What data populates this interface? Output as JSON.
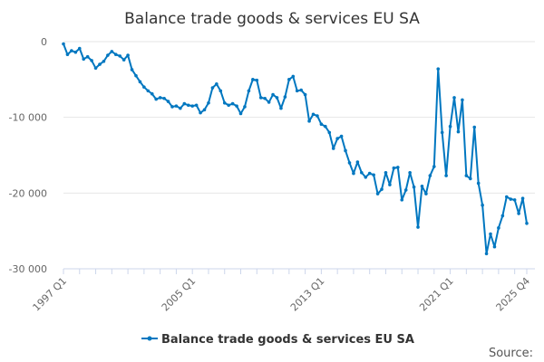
{
  "chart_data": {
    "type": "line",
    "title": "Balance trade goods & services EU SA",
    "xlabel": "",
    "ylabel": "",
    "ylim": [
      -30000,
      0
    ],
    "yticks": [
      0,
      -10000,
      -20000,
      -30000
    ],
    "ytick_labels": [
      "0",
      "-10 000",
      "-20 000",
      "-30 000"
    ],
    "xtick_labels": [
      "1997 Q1",
      "2005 Q1",
      "2013 Q1",
      "2021 Q1",
      "2025 Q4"
    ],
    "xtick_index": [
      0,
      32,
      64,
      96,
      115
    ],
    "grid": true,
    "legend": "bottom",
    "start": "1997 Q1",
    "end": "2025 Q4",
    "series": [
      {
        "name": "Balance trade goods & services EU SA",
        "color": "#0077c0",
        "values": [
          -300,
          -1700,
          -1200,
          -1400,
          -900,
          -2300,
          -2000,
          -2500,
          -3500,
          -3000,
          -2600,
          -1800,
          -1300,
          -1700,
          -1900,
          -2400,
          -1800,
          -3700,
          -4500,
          -5300,
          -6000,
          -6500,
          -6900,
          -7600,
          -7400,
          -7500,
          -7900,
          -8600,
          -8500,
          -8800,
          -8200,
          -8400,
          -8500,
          -8400,
          -9400,
          -9000,
          -8100,
          -6100,
          -5600,
          -6500,
          -8100,
          -8400,
          -8200,
          -8500,
          -9500,
          -8600,
          -6500,
          -5000,
          -5100,
          -7400,
          -7500,
          -8000,
          -7000,
          -7400,
          -8800,
          -7300,
          -5000,
          -4600,
          -6500,
          -6400,
          -7000,
          -10500,
          -9600,
          -9800,
          -10900,
          -11200,
          -12000,
          -14100,
          -12800,
          -12500,
          -14400,
          -16000,
          -17400,
          -15900,
          -17300,
          -17900,
          -17400,
          -17600,
          -20100,
          -19500,
          -17300,
          -18900,
          -16700,
          -16600,
          -20900,
          -19600,
          -17300,
          -19200,
          -24500,
          -19100,
          -20100,
          -17700,
          -16500,
          -3600,
          -12000,
          -17700,
          -11200,
          -7400,
          -11900,
          -7700,
          -17700,
          -18100,
          -11300,
          -18700,
          -21600,
          -28000,
          -25400,
          -27100,
          -24600,
          -23000,
          -20500,
          -20800,
          -20900,
          -22700,
          -20700,
          -24000
        ]
      }
    ]
  },
  "source_label": "Source:"
}
